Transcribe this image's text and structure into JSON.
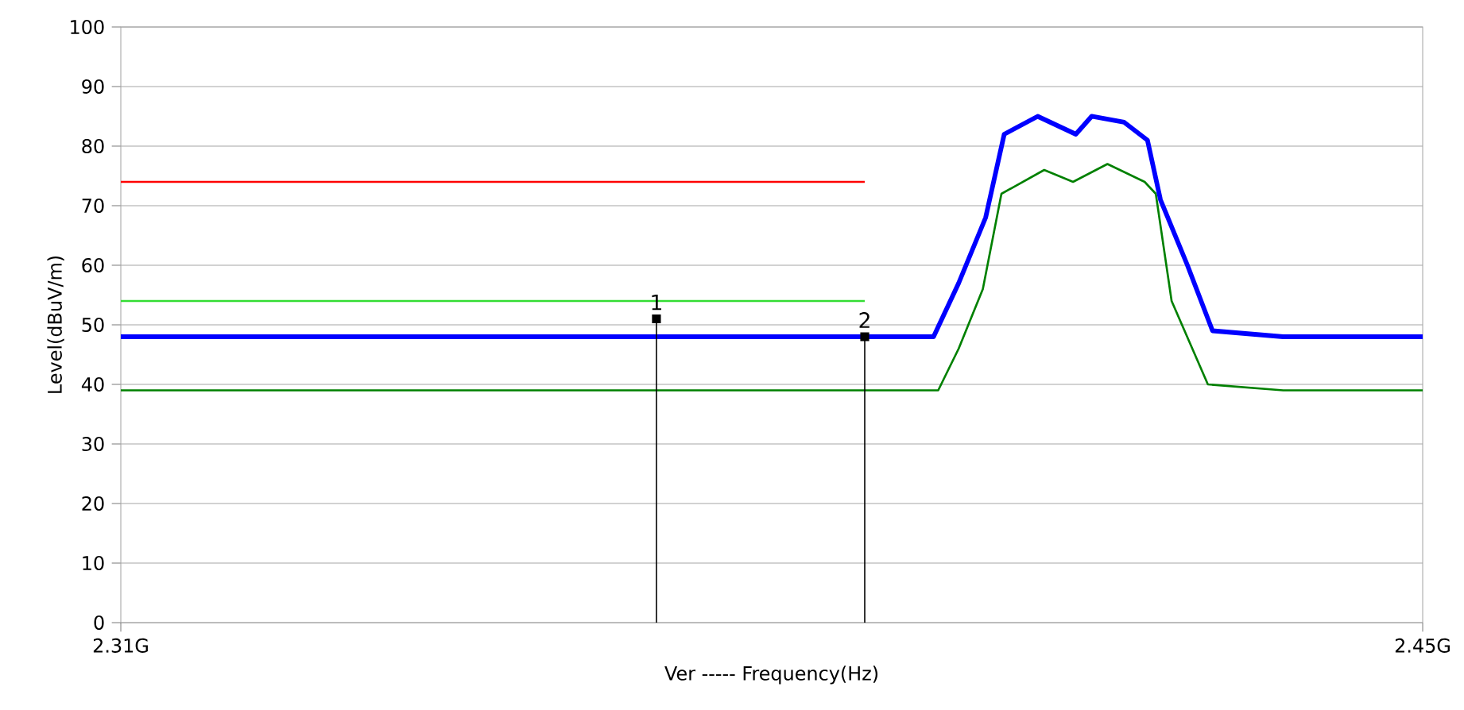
{
  "chart_data": {
    "type": "line",
    "xlabel": "Ver  -----  Frequency(Hz)",
    "ylabel": "Level(dBuV/m)",
    "xlim": [
      2.31,
      2.45
    ],
    "xticks": [
      {
        "value": 2.31,
        "label": "2.31G"
      },
      {
        "value": 2.45,
        "label": "2.45G"
      }
    ],
    "ylim": [
      0,
      100
    ],
    "yticks": [
      0,
      10,
      20,
      30,
      40,
      50,
      60,
      70,
      80,
      90,
      100
    ],
    "grid": "y",
    "annotations": [
      {
        "text": "1",
        "x": 2.3676,
        "y": 51
      },
      {
        "text": "2",
        "x": 2.39,
        "y": 48
      }
    ],
    "series": [
      {
        "color": "#ff0000",
        "x": [
          2.31,
          2.39
        ],
        "values": [
          74,
          74
        ]
      },
      {
        "color": "#33dd33",
        "x": [
          2.31,
          2.39
        ],
        "values": [
          54,
          54
        ]
      },
      {
        "color": "#008000",
        "x": [
          2.31,
          2.33,
          2.35,
          2.37,
          2.39,
          2.3979,
          2.4001,
          2.4027,
          2.4047,
          2.4093,
          2.4124,
          2.4161,
          2.4201,
          2.4213,
          2.423,
          2.4269,
          2.435,
          2.45
        ],
        "values": [
          39,
          39,
          39,
          39,
          39,
          39,
          46,
          56,
          72,
          76,
          74,
          77,
          74,
          72,
          54,
          40,
          39,
          39
        ]
      },
      {
        "color": "#0000ff",
        "x": [
          2.31,
          2.33,
          2.35,
          2.37,
          2.39,
          2.3974,
          2.4001,
          2.403,
          2.405,
          2.4086,
          2.4127,
          2.4144,
          2.4179,
          2.4204,
          2.4218,
          2.4247,
          2.4274,
          2.435,
          2.45
        ],
        "values": [
          48,
          48,
          48,
          48,
          48,
          48,
          57,
          68,
          82,
          85,
          82,
          85,
          84,
          81,
          71,
          60,
          49,
          48,
          48
        ]
      },
      {
        "type": "lollipop",
        "color": "#000000",
        "marker": "square",
        "x": [
          2.3676,
          2.39
        ],
        "values": [
          51,
          48
        ]
      }
    ]
  }
}
